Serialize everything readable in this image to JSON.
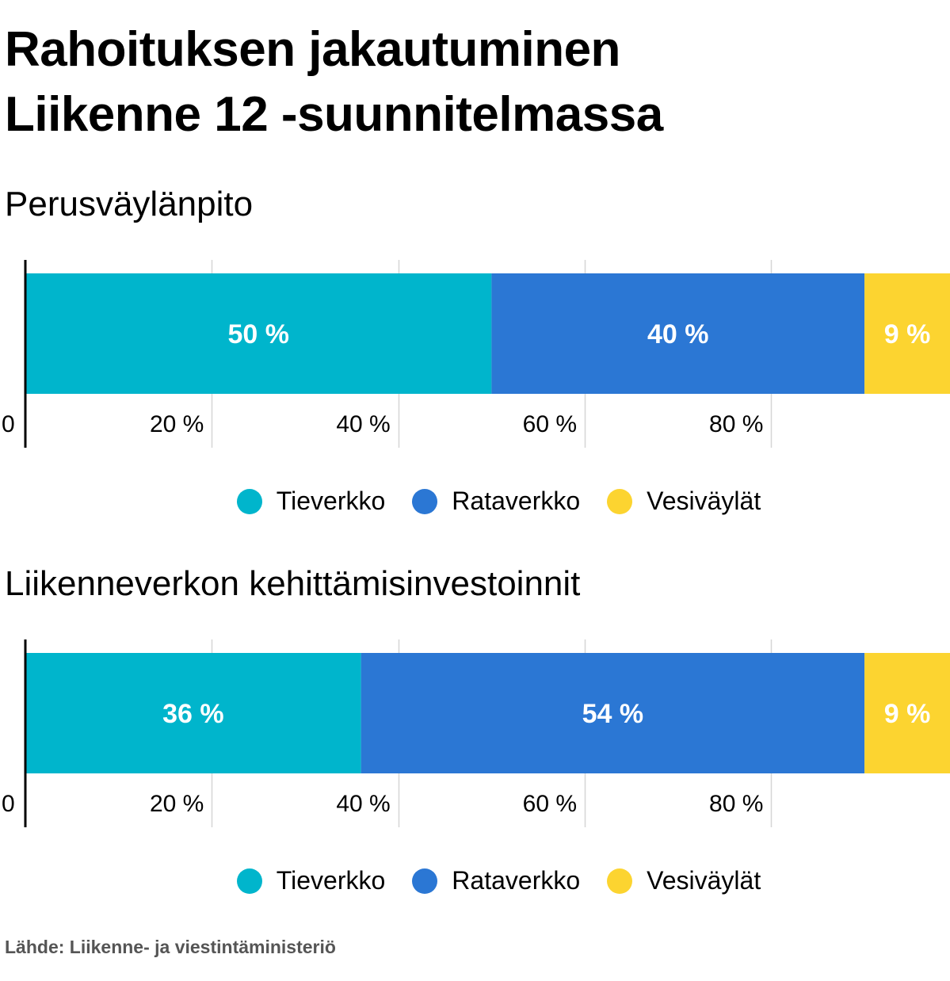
{
  "title_lines": [
    "Rahoituksen jakautuminen",
    "Liikenne 12 -suunnitelmassa"
  ],
  "source": "Lähde: Liikenne- ja viestintäministeriö",
  "colors": {
    "tieverkko": "#00B5CC",
    "rataverkko": "#2B77D4",
    "vesivaylat": "#FCD430",
    "axis": "#000000",
    "grid": "#d6d6d6"
  },
  "chart_data": [
    {
      "type": "bar",
      "orientation": "horizontal",
      "stacked": true,
      "title": "Perusväylänpito",
      "categories": [
        ""
      ],
      "series": [
        {
          "name": "Tieverkko",
          "values": [
            50
          ],
          "label": "50 %",
          "color": "#00B5CC"
        },
        {
          "name": "Rataverkko",
          "values": [
            40
          ],
          "label": "40 %",
          "color": "#2B77D4"
        },
        {
          "name": "Vesiväylät",
          "values": [
            9
          ],
          "label": "9 %",
          "color": "#FCD430"
        }
      ],
      "xlim": [
        0,
        99
      ],
      "xticks": [
        0,
        20,
        40,
        60,
        80
      ],
      "xtick_labels": [
        "0",
        "20 %",
        "40 %",
        "60 %",
        "80 %"
      ],
      "grid": true,
      "legend": "bottom-center"
    },
    {
      "type": "bar",
      "orientation": "horizontal",
      "stacked": true,
      "title": "Liikenneverkon kehittämisinvestoinnit",
      "categories": [
        ""
      ],
      "series": [
        {
          "name": "Tieverkko",
          "values": [
            36
          ],
          "label": "36 %",
          "color": "#00B5CC"
        },
        {
          "name": "Rataverkko",
          "values": [
            54
          ],
          "label": "54 %",
          "color": "#2B77D4"
        },
        {
          "name": "Vesiväylät",
          "values": [
            9
          ],
          "label": "9 %",
          "color": "#FCD430"
        }
      ],
      "xlim": [
        0,
        99
      ],
      "xticks": [
        0,
        20,
        40,
        60,
        80
      ],
      "xtick_labels": [
        "0",
        "20 %",
        "40 %",
        "60 %",
        "80 %"
      ],
      "grid": true,
      "legend": "bottom-center"
    }
  ]
}
